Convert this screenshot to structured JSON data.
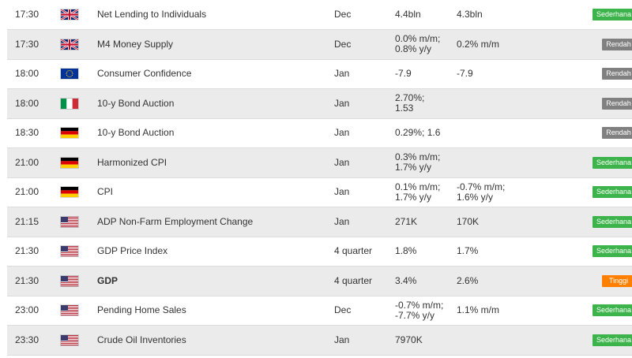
{
  "rows": [
    {
      "time": "17:30",
      "flag": "uk-flag-icon",
      "event": "Net Lending to Individuals",
      "bold": false,
      "period": "Dec",
      "actual_1": "4.4bln",
      "actual_2": "",
      "forecast_1": "4.3bln",
      "forecast_2": "",
      "impact": "Sederhana",
      "impact_level": "sederhana"
    },
    {
      "time": "17:30",
      "flag": "uk-flag-icon",
      "event": "M4 Money Supply",
      "bold": false,
      "period": "Dec",
      "actual_1": "0.0% m/m;",
      "actual_2": "0.8% y/y",
      "forecast_1": "0.2% m/m",
      "forecast_2": "",
      "impact": "Rendah",
      "impact_level": "rendah"
    },
    {
      "time": "18:00",
      "flag": "eu-flag-icon",
      "event": "Consumer Confidence",
      "bold": false,
      "period": "Jan",
      "actual_1": "-7.9",
      "actual_2": "",
      "forecast_1": "-7.9",
      "forecast_2": "",
      "impact": "Rendah",
      "impact_level": "rendah"
    },
    {
      "time": "18:00",
      "flag": "italy-flag-icon",
      "event": "10-y Bond Auction",
      "bold": false,
      "period": "Jan",
      "actual_1": "2.70%;",
      "actual_2": "1.53",
      "forecast_1": "",
      "forecast_2": "",
      "impact": "Rendah",
      "impact_level": "rendah"
    },
    {
      "time": "18:30",
      "flag": "germany-flag-icon",
      "event": "10-y Bond Auction",
      "bold": false,
      "period": "Jan",
      "actual_1": "0.29%; 1.6",
      "actual_2": "",
      "forecast_1": "",
      "forecast_2": "",
      "impact": "Rendah",
      "impact_level": "rendah"
    },
    {
      "time": "21:00",
      "flag": "germany-flag-icon",
      "event": "Harmonized CPI",
      "bold": false,
      "period": "Jan",
      "actual_1": "0.3% m/m;",
      "actual_2": "1.7% y/y",
      "forecast_1": "",
      "forecast_2": "",
      "impact": "Sederhana",
      "impact_level": "sederhana"
    },
    {
      "time": "21:00",
      "flag": "germany-flag-icon",
      "event": "CPI",
      "bold": false,
      "period": "Jan",
      "actual_1": "0.1% m/m;",
      "actual_2": "1.7% y/y",
      "forecast_1": "-0.7% m/m;",
      "forecast_2": "1.6% y/y",
      "impact": "Sederhana",
      "impact_level": "sederhana"
    },
    {
      "time": "21:15",
      "flag": "usa-flag-icon",
      "event": "ADP Non-Farm Employment Change",
      "bold": false,
      "period": "Jan",
      "actual_1": "271K",
      "actual_2": "",
      "forecast_1": "170K",
      "forecast_2": "",
      "impact": "Sederhana",
      "impact_level": "sederhana"
    },
    {
      "time": "21:30",
      "flag": "usa-flag-icon",
      "event": "GDP Price Index",
      "bold": false,
      "period": "4 quarter",
      "actual_1": "1.8%",
      "actual_2": "",
      "forecast_1": "1.7%",
      "forecast_2": "",
      "impact": "Sederhana",
      "impact_level": "sederhana"
    },
    {
      "time": "21:30",
      "flag": "usa-flag-icon",
      "event": "GDP",
      "bold": true,
      "period": "4 quarter",
      "actual_1": "3.4%",
      "actual_2": "",
      "forecast_1": "2.6%",
      "forecast_2": "",
      "impact": "Tinggi",
      "impact_level": "tinggi"
    },
    {
      "time": "23:00",
      "flag": "usa-flag-icon",
      "event": "Pending Home Sales",
      "bold": false,
      "period": "Dec",
      "actual_1": "-0.7% m/m;",
      "actual_2": "-7.7% y/y",
      "forecast_1": "1.1% m/m",
      "forecast_2": "",
      "impact": "Sederhana",
      "impact_level": "sederhana"
    },
    {
      "time": "23:30",
      "flag": "usa-flag-icon",
      "event": "Crude Oil Inventories",
      "bold": false,
      "period": "Jan",
      "actual_1": "7970K",
      "actual_2": "",
      "forecast_1": "",
      "forecast_2": "",
      "impact": "Sederhana",
      "impact_level": "sederhana"
    }
  ]
}
